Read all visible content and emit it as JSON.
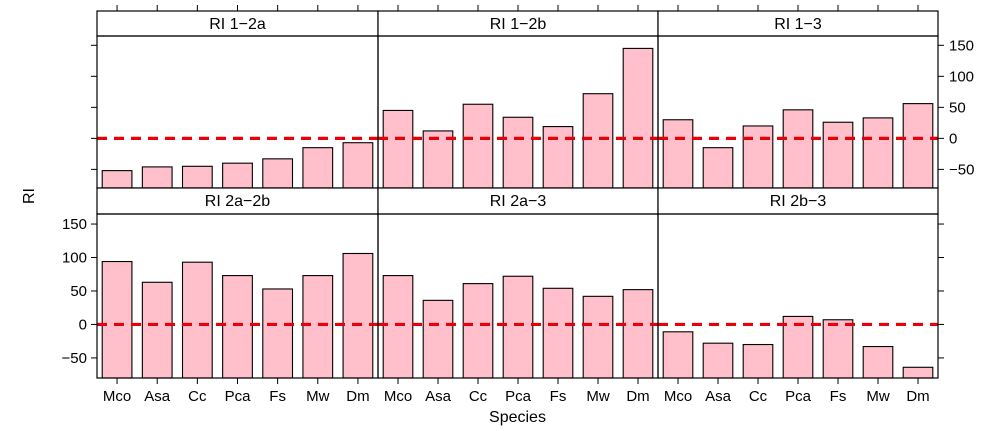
{
  "chart_data": {
    "type": "bar",
    "layout": "trellis 3x2",
    "xlabel": "Species",
    "ylabel": "RI",
    "ylim": [
      -80,
      165
    ],
    "yticks": [
      -50,
      0,
      50,
      100,
      150
    ],
    "reference_line": {
      "y": 0,
      "color": "#e8000b",
      "style": "dashed"
    },
    "bar_color": "#ffc0cb",
    "categories": [
      "Mco",
      "Asa",
      "Cc",
      "Pca",
      "Fs",
      "Mw",
      "Dm"
    ],
    "panels": [
      {
        "name": "RI 1−2a",
        "values": [
          -52,
          -46,
          -45,
          -40,
          -33,
          -15,
          -7
        ]
      },
      {
        "name": "RI 1−2b",
        "values": [
          45,
          12,
          55,
          34,
          19,
          72,
          145
        ]
      },
      {
        "name": "RI 1−3",
        "values": [
          30,
          -15,
          20,
          46,
          26,
          33,
          56
        ]
      },
      {
        "name": "RI 2a−2b",
        "values": [
          94,
          63,
          93,
          73,
          53,
          73,
          106
        ]
      },
      {
        "name": "RI 2a−3",
        "values": [
          73,
          36,
          61,
          72,
          54,
          42,
          52
        ]
      },
      {
        "name": "RI 2b−3",
        "values": [
          -11,
          -28,
          -30,
          12,
          7,
          -33,
          -64
        ]
      }
    ]
  }
}
